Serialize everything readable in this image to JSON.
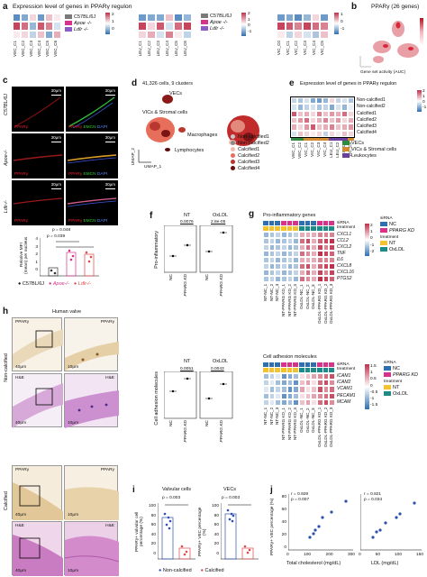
{
  "panel_a": {
    "letter": "a",
    "title": "Expression level of genes in PPARγ regulon",
    "legend": [
      "C57BL/6J",
      "Apoe -/-",
      "Ldlr -/-"
    ],
    "groups": [
      {
        "cols": [
          "VEC_C1",
          "VEC_C2",
          "VEC_C3",
          "VEC_C4",
          "VEC_C5",
          "VEC_C6"
        ],
        "scale": [
          "2",
          "1",
          "0"
        ]
      },
      {
        "cols": [
          "LEU_C1",
          "LEU_C2",
          "LEU_C3",
          "LEU_C4",
          "LEU_C5",
          "LEU_C6"
        ],
        "scale": [
          "2",
          "1",
          "0",
          "-1"
        ]
      },
      {
        "cols": [
          "VIC_C0",
          "VIC_C1",
          "VIC_C2",
          "VIC_C3",
          "VIC_C4",
          "VIC_C5"
        ],
        "scale": [
          "1",
          "0",
          "-1"
        ]
      }
    ]
  },
  "panel_b": {
    "letter": "b",
    "title": "PPARγ (26 genes)",
    "xlabel": "Gene set activity (AUC)"
  },
  "panel_c": {
    "letter": "c",
    "rows": [
      "C57BL/6J",
      "Apoe-/-",
      "Ldlr-/-"
    ],
    "scale": "30μm",
    "labels": [
      "PPARγ",
      "PPARγ",
      "EMCN",
      "DAPI"
    ],
    "chart": {
      "ylabel": "Relative MFI (mean) per nucleus",
      "p1": "p = 0.048",
      "p2": "p = 0.039",
      "yticks": [
        "4",
        "3",
        "2",
        "1",
        "0"
      ],
      "legend": [
        "C57BL/6J",
        "Apoe-/-",
        "Ldlr-/-"
      ]
    }
  },
  "panel_d": {
    "letter": "d",
    "title": "41,326 cells, 9 clusters",
    "labels": [
      "VECs",
      "VICs & Stromal cells",
      "Macrophages",
      "Lymphocytes"
    ],
    "axis1": "UMAP_1",
    "axis2": "UMAP_2",
    "legend": [
      "Non-calcified1",
      "Non-calcified2",
      "Calcified1",
      "Calcified2",
      "Calcified3",
      "Calcified4"
    ]
  },
  "panel_e": {
    "letter": "e",
    "title": "Expression level of genes in PPARγ regulon",
    "rows": [
      "Non-calcified1",
      "Non-calcified2",
      "Calcified1",
      "Calcified2",
      "Calcified3",
      "Calcified4"
    ],
    "cols": [
      "VEC_C1",
      "VEC_C2",
      "VIC_C1",
      "VIC_C2",
      "VIC_C3",
      "VIC_C4",
      "LEU_C1",
      "LEU_C2",
      "LEU_C3",
      "VIC_C4"
    ],
    "legend": [
      "VECs",
      "VICs & Stromal cells",
      "Leukocytes"
    ],
    "scale": [
      "2",
      "1",
      "0",
      "-1"
    ]
  },
  "panel_f": {
    "letter": "f",
    "chart1": {
      "ylabel": "Pro-inflammatory",
      "groups": [
        "NT",
        "OxLDL"
      ],
      "pvals": [
        "0.0076",
        "2.8e-05"
      ],
      "xlabels": [
        "NC",
        "PPARG KD",
        "NC",
        "PPARG KD"
      ]
    },
    "chart2": {
      "ylabel": "Cell adhesion molecules",
      "groups": [
        "NT",
        "OxLDL"
      ],
      "pvals": [
        "0.0051",
        "0.0043"
      ],
      "xlabels": [
        "NC",
        "PPARG KD",
        "NC",
        "PPARG KD"
      ]
    }
  },
  "panel_g": {
    "letter": "g",
    "heat1": {
      "title": "Pro-inflammatory genes",
      "genes": [
        "CXCL1",
        "CCL2",
        "CXCL2",
        "TNF",
        "IL6",
        "CXCL8",
        "CXCL16",
        "PTGS2"
      ],
      "scale": [
        "2",
        "1",
        "0",
        "-1",
        "-2"
      ]
    },
    "heat2": {
      "title": "Cell adhesion molecules",
      "genes": [
        "ICAM1",
        "ICAM2",
        "VCAM1",
        "PECAM1",
        "MCAM"
      ],
      "scale": [
        "1.5",
        "1",
        "0.5",
        "0",
        "-0.5",
        "-1",
        "-1.5"
      ]
    },
    "cols": [
      "NT-NC_1",
      "NT-NC_2",
      "NT-NC_3",
      "NT-PPARG KD_1",
      "NT-PPARG KD_2",
      "NT-PPARG KD_3",
      "OxLDL-NC_1",
      "OxLDL-NC_2",
      "OxLDL-NC_3",
      "OxLDL-PPARG KD_1",
      "OxLDL-PPARG KD_2",
      "OxLDL-PPARG KD_3"
    ],
    "track_labels": [
      "siRNA",
      "treatment"
    ],
    "legend": {
      "sirna_title": "siRNA",
      "sirna": [
        "NC",
        "PPARG KD"
      ],
      "treatment_title": "treatment",
      "treatment": [
        "NT",
        "OxLDL"
      ]
    }
  },
  "panel_h": {
    "letter": "h",
    "title": "Human valve",
    "stains": [
      "PPARγ",
      "PPARγ",
      "H&E",
      "H&E",
      "PPARγ",
      "PPARγ",
      "H&E",
      "H&E"
    ],
    "rows": [
      "Non-calcified",
      "Calcified"
    ],
    "scale_big": "40μm",
    "scale_small": "10μm"
  },
  "panel_i": {
    "letter": "i",
    "chart1": {
      "title": "Valvular cells",
      "ylabel": "PPARγ+ valvular cell percentage (%)",
      "pval": "p = 0.003",
      "yticks": [
        "100",
        "80",
        "60",
        "40",
        "20",
        "0"
      ]
    },
    "chart2": {
      "title": "VECs",
      "ylabel": "PPARγ+ VEC percentage (%)",
      "pval": "p = 0.003",
      "yticks": [
        "100",
        "80",
        "60",
        "40",
        "20",
        "0"
      ]
    },
    "legend": [
      "Non-calcified",
      "Calcified"
    ]
  },
  "panel_j": {
    "letter": "j",
    "ylabel": "PPARγ+ VEC percentage (%)",
    "chart1": {
      "stat_r": "r = 0.929",
      "stat_p": "p = 0.007",
      "xlabel": "Total cholesterol (mg/dL)",
      "xticks": [
        "0",
        "100",
        "200",
        "300"
      ],
      "yticks": [
        "80",
        "60",
        "40",
        "20",
        "0"
      ]
    },
    "chart2": {
      "stat_r": "r = 0.821",
      "stat_p": "p = 0.034",
      "xlabel": "LDL (mg/dL)",
      "xticks": [
        "0",
        "50",
        "100",
        "150"
      ]
    }
  },
  "colors": {
    "heat_high": "#c0304a",
    "heat_low": "#2f6fb0",
    "gold": "#f2c230",
    "teal": "#1f8a8a",
    "magenta": "#d6338a",
    "blue_light": "#8fb8dc",
    "purple": "#6a3fa0",
    "green": "#2e8b3e"
  }
}
